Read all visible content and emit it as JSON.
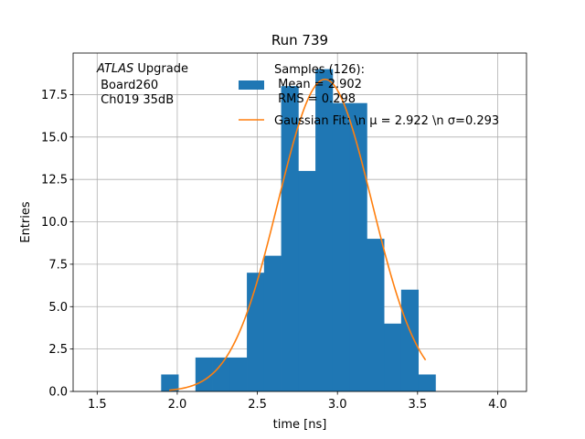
{
  "chart_data": {
    "type": "bar",
    "title": "Run 739",
    "xlabel": "time [ns]",
    "ylabel": "Entries",
    "xlim": [
      1.35,
      4.18
    ],
    "ylim": [
      0,
      19.95
    ],
    "grid": true,
    "xticks": [
      "1.5",
      "2.0",
      "2.5",
      "3.0",
      "3.5",
      "4.0"
    ],
    "yticks": [
      "0.0",
      "2.5",
      "5.0",
      "7.5",
      "10.0",
      "12.5",
      "15.0",
      "17.5"
    ],
    "bin_width": 0.107,
    "bins": [
      {
        "x": 1.953,
        "y": 1
      },
      {
        "x": 2.167,
        "y": 2
      },
      {
        "x": 2.274,
        "y": 2
      },
      {
        "x": 2.381,
        "y": 2
      },
      {
        "x": 2.488,
        "y": 7
      },
      {
        "x": 2.595,
        "y": 8
      },
      {
        "x": 2.702,
        "y": 18
      },
      {
        "x": 2.809,
        "y": 13
      },
      {
        "x": 2.916,
        "y": 19
      },
      {
        "x": 3.023,
        "y": 17
      },
      {
        "x": 3.13,
        "y": 17
      },
      {
        "x": 3.237,
        "y": 9
      },
      {
        "x": 3.344,
        "y": 4
      },
      {
        "x": 3.451,
        "y": 6
      },
      {
        "x": 3.558,
        "y": 1
      }
    ],
    "fit": {
      "mu": 2.922,
      "sigma": 0.293,
      "amplitude": 18.4,
      "x_range": [
        1.95,
        3.55
      ]
    },
    "series": [
      {
        "name": "Samples (126):\n Mean = 2.902\n RMS = 0.298",
        "color": "#1f77b4"
      },
      {
        "name": "Gaussian Fit: \\n μ = 2.922 \\n σ=0.293",
        "color": "#ff7f0e"
      }
    ],
    "legend_position": "top-right",
    "annotation": {
      "italic": "ATLAS",
      "line1_rest": " Upgrade",
      "line2": " Board260",
      "line3": " Ch019 35dB"
    }
  }
}
